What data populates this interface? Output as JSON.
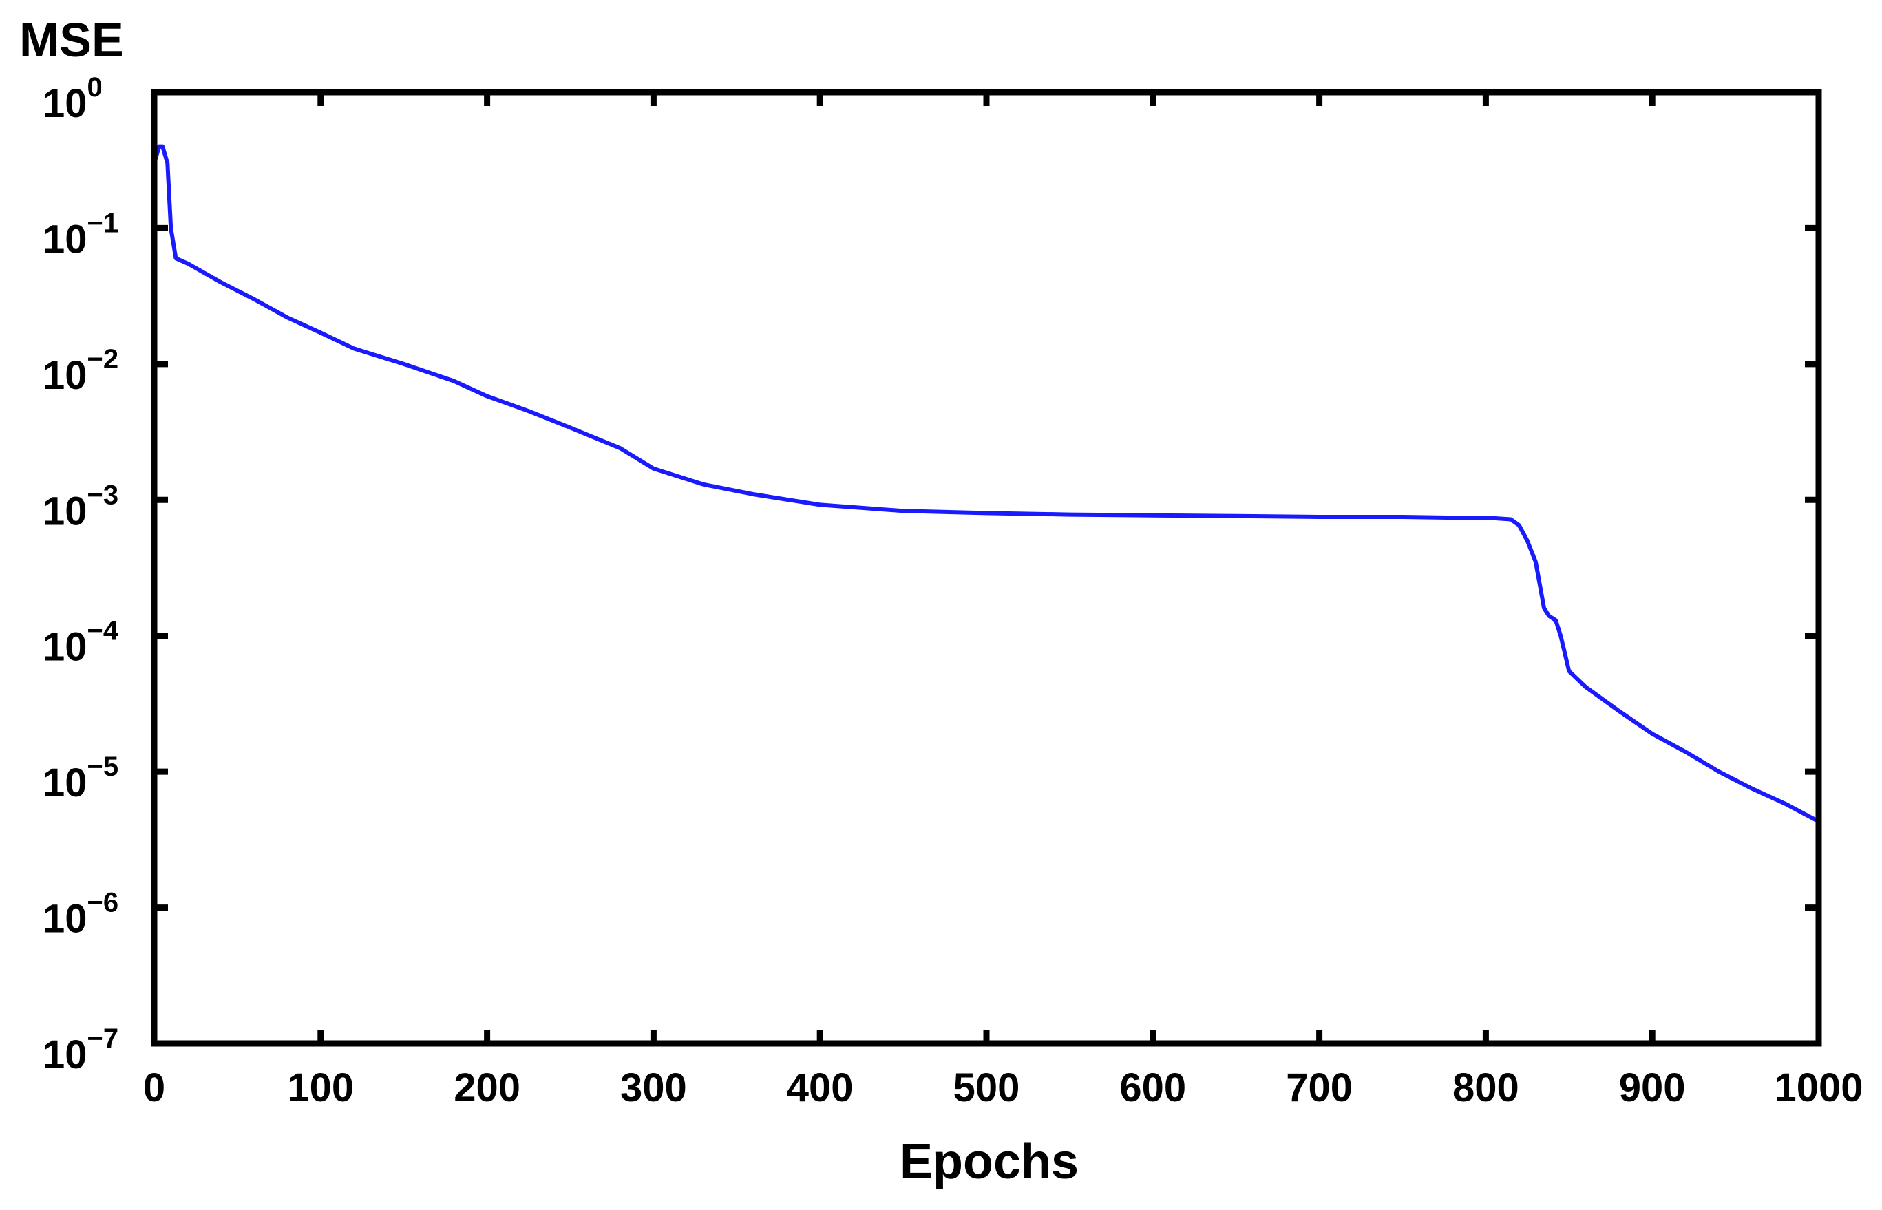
{
  "chart_data": {
    "type": "line",
    "title": "",
    "xlabel": "Epochs",
    "ylabel": "MSE",
    "xlim": [
      0,
      1000
    ],
    "ylim": [
      1e-07,
      1
    ],
    "yscale": "log",
    "grid": false,
    "x_ticks": [
      {
        "value": 0,
        "label": "0"
      },
      {
        "value": 100,
        "label": "100"
      },
      {
        "value": 200,
        "label": "200"
      },
      {
        "value": 300,
        "label": "300"
      },
      {
        "value": 400,
        "label": "400"
      },
      {
        "value": 500,
        "label": "500"
      },
      {
        "value": 600,
        "label": "600"
      },
      {
        "value": 700,
        "label": "700"
      },
      {
        "value": 800,
        "label": "800"
      },
      {
        "value": 900,
        "label": "900"
      },
      {
        "value": 1000,
        "label": "1000"
      }
    ],
    "y_ticks": [
      {
        "value": 1,
        "base": "10",
        "exp": "0"
      },
      {
        "value": 0.1,
        "base": "10",
        "exp": "−1"
      },
      {
        "value": 0.01,
        "base": "10",
        "exp": "−2"
      },
      {
        "value": 0.001,
        "base": "10",
        "exp": "−3"
      },
      {
        "value": 0.0001,
        "base": "10",
        "exp": "−4"
      },
      {
        "value": 1e-05,
        "base": "10",
        "exp": "−5"
      },
      {
        "value": 1e-06,
        "base": "10",
        "exp": "−6"
      },
      {
        "value": 1e-07,
        "base": "10",
        "exp": "−7"
      }
    ],
    "series": [
      {
        "color": "#1a1aff",
        "x": [
          0,
          3,
          5,
          8,
          10,
          13,
          20,
          40,
          60,
          80,
          100,
          120,
          150,
          180,
          200,
          225,
          250,
          280,
          300,
          330,
          360,
          400,
          450,
          500,
          550,
          600,
          650,
          700,
          750,
          780,
          800,
          815,
          820,
          825,
          830,
          835,
          838,
          842,
          845,
          848,
          850,
          855,
          860,
          880,
          900,
          920,
          940,
          960,
          980,
          1000
        ],
        "y": [
          0.3,
          0.4,
          0.4,
          0.3,
          0.1,
          0.06,
          0.055,
          0.04,
          0.03,
          0.022,
          0.017,
          0.013,
          0.01,
          0.0075,
          0.0058,
          0.0045,
          0.0034,
          0.0024,
          0.0017,
          0.0013,
          0.0011,
          0.00092,
          0.00083,
          0.0008,
          0.00078,
          0.00077,
          0.00076,
          0.00075,
          0.00075,
          0.00074,
          0.00074,
          0.00072,
          0.00065,
          0.0005,
          0.00035,
          0.00016,
          0.00014,
          0.00013,
          0.0001,
          7e-05,
          5.5e-05,
          4.8e-05,
          4.2e-05,
          2.8e-05,
          1.9e-05,
          1.4e-05,
          1e-05,
          7.5e-06,
          5.8e-06,
          4.3e-06
        ]
      }
    ]
  }
}
